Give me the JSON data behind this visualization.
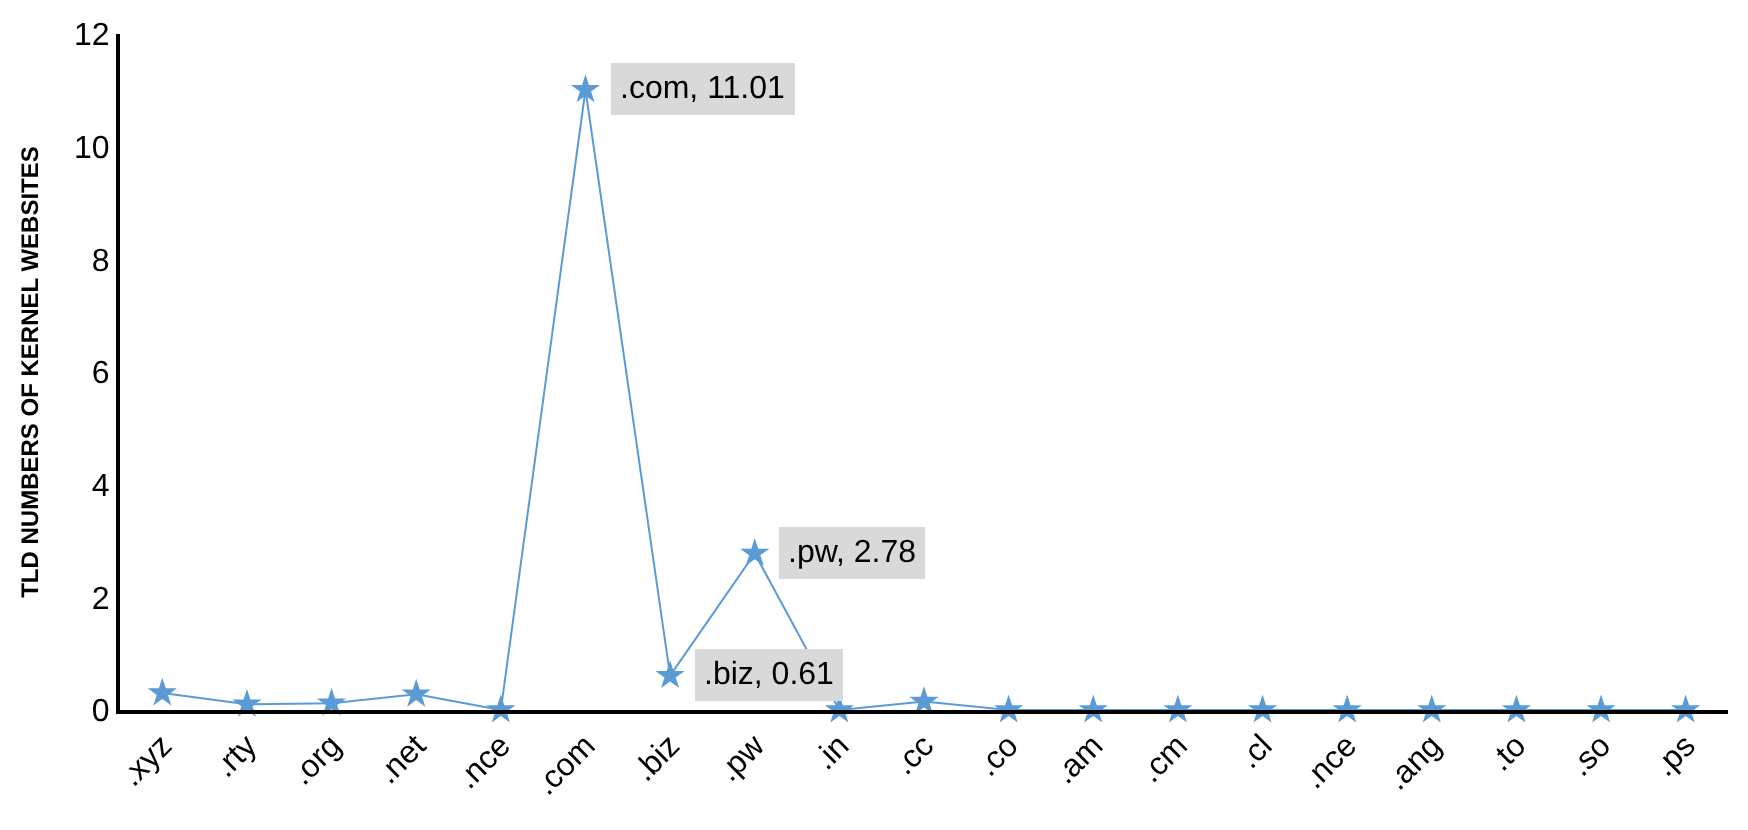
{
  "chart_data": {
    "type": "line",
    "ylabel": "TLD NUMBERS OF KERNEL WEBSITES",
    "categories": [
      ".xyz",
      ".rty",
      ".org",
      ".net",
      ".nce",
      ".com",
      ".biz",
      ".pw",
      ".in",
      ".cc",
      ".co",
      ".am",
      ".cm",
      ".cl",
      ".nce",
      ".ang",
      ".to",
      ".so",
      ".ps"
    ],
    "series": [
      {
        "color": "#5b9bd5",
        "values": [
          0.3,
          0.1,
          0.12,
          0.28,
          0,
          11.01,
          0.61,
          2.78,
          0,
          0.15,
          0,
          0,
          0,
          0,
          0,
          0,
          0,
          0,
          0
        ],
        "value_labels": [
          null,
          null,
          null,
          null,
          null,
          ".com, 11.01",
          ".biz, 0.61",
          ".pw, 2.78",
          null,
          null,
          null,
          null,
          null,
          null,
          null,
          null,
          null,
          null,
          null
        ]
      }
    ],
    "ylim": [
      0,
      12
    ],
    "yticks": [
      0,
      2,
      4,
      6,
      8,
      10,
      12
    ],
    "marker": "star",
    "line_style": "solid"
  }
}
